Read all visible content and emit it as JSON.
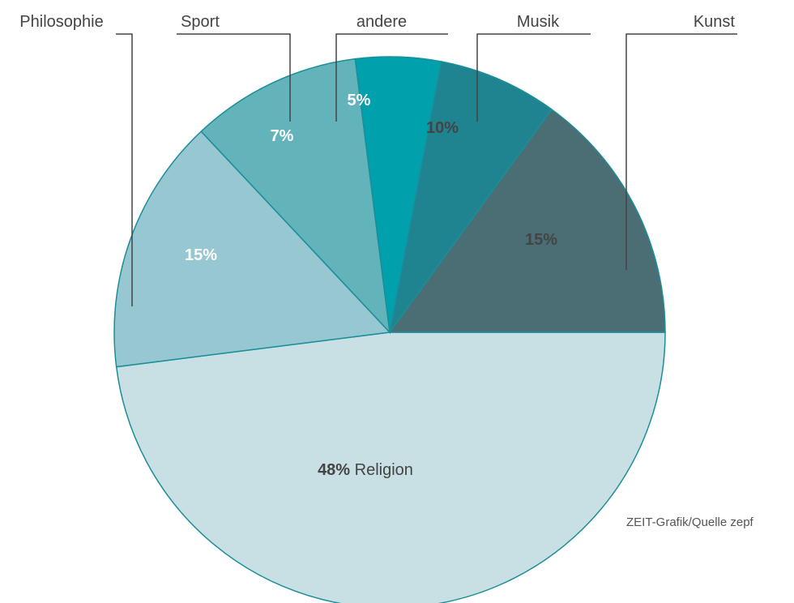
{
  "chart_data": {
    "type": "pie",
    "title": "",
    "slices": [
      {
        "label": "Religion",
        "value": 48,
        "value_label": "48%",
        "color": "#c8dfe3",
        "text_color": "#444444"
      },
      {
        "label": "Kunst",
        "value": 15,
        "value_label": "15%",
        "color": "#97c7d0",
        "text_color": "#444444"
      },
      {
        "label": "Musik",
        "value": 10,
        "value_label": "10%",
        "color": "#63b3ba",
        "text_color": "#444444"
      },
      {
        "label": "andere",
        "value": 5,
        "value_label": "5%",
        "color": "#00a0ac",
        "text_color": "#ffffff"
      },
      {
        "label": "Sport",
        "value": 7,
        "value_label": "7%",
        "color": "#1f848f",
        "text_color": "#ffffff"
      },
      {
        "label": "Philosophie",
        "value": 15,
        "value_label": "15%",
        "color": "#4a6e74",
        "text_color": "#ffffff"
      }
    ],
    "edge_color": "#1a8f99",
    "leader_color": "#444444",
    "legend": "none",
    "source": "ZEIT-Grafik/Quelle zepf"
  }
}
